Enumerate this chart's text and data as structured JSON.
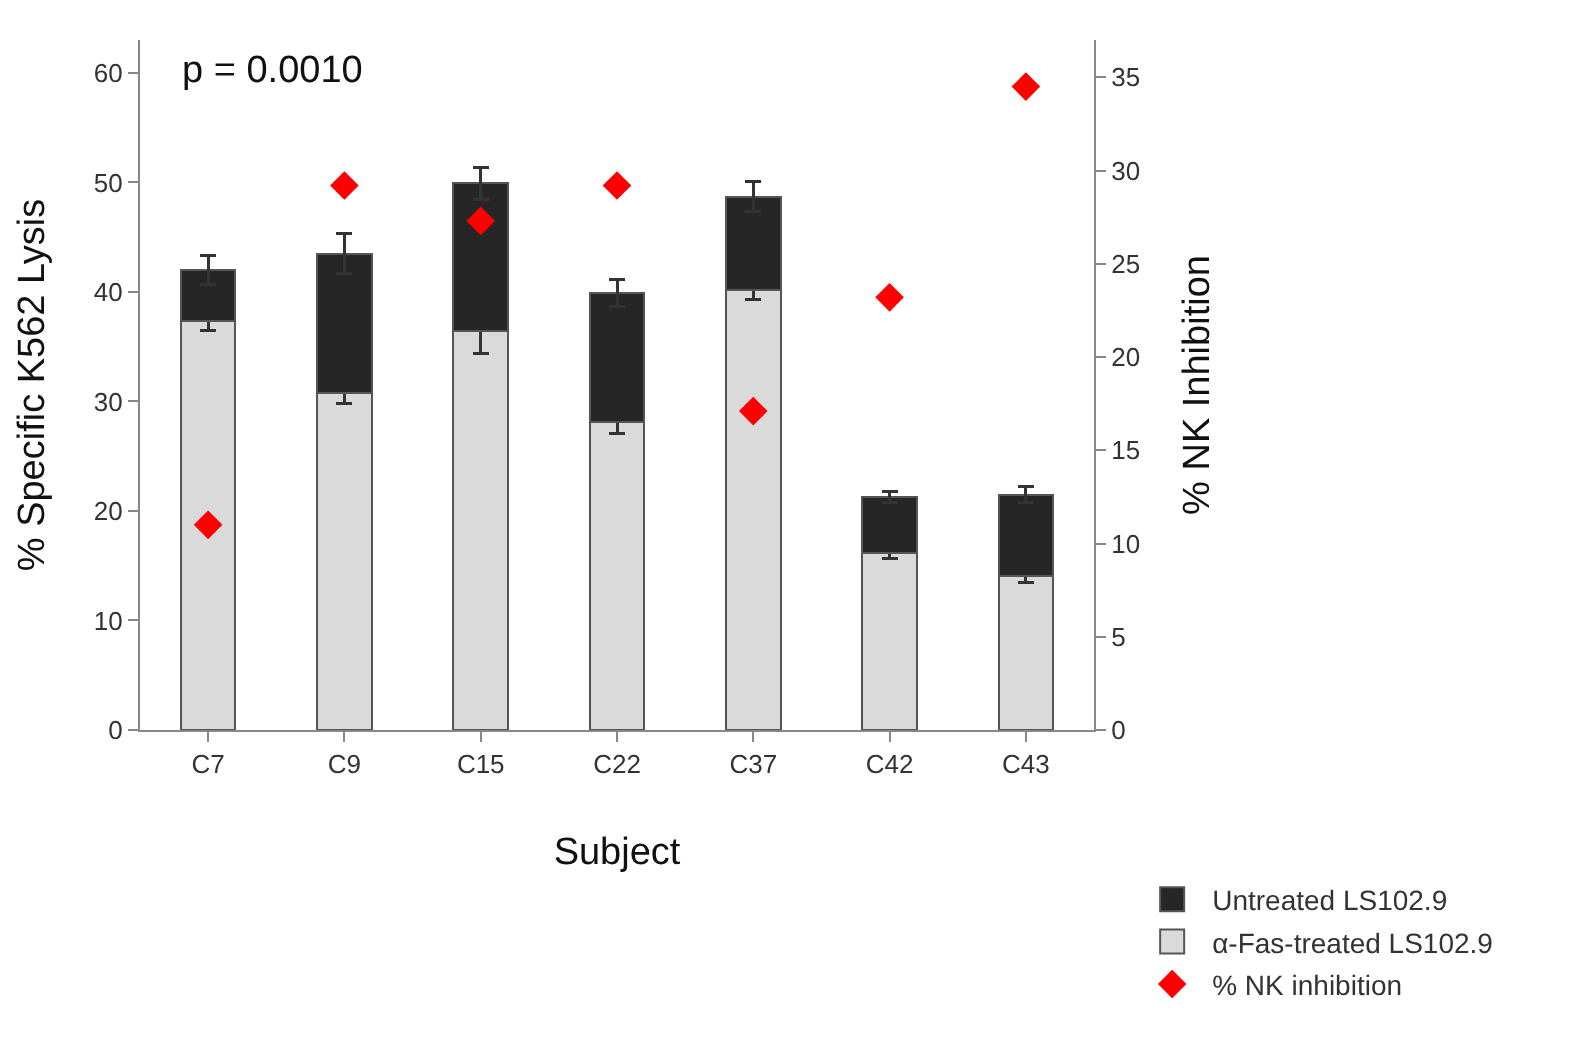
{
  "chart_data": {
    "type": "bar",
    "stacked": true,
    "xlabel": "Subject",
    "ylabel": "% Specific K562 Lysis",
    "y2label": "% NK Inhibition",
    "categories": [
      "C7",
      "C9",
      "C15",
      "C22",
      "C37",
      "C42",
      "C43"
    ],
    "series": [
      {
        "name": "α-Fas-treated LS102.9",
        "color": "#dadada",
        "values": [
          37.3,
          30.8,
          36.4,
          28.1,
          40.2,
          16.2,
          14.1
        ],
        "errors": [
          0.8,
          1,
          2,
          1,
          0.9,
          0.5,
          0.6
        ]
      },
      {
        "name": "Untreated LS102.9",
        "color": "#262626",
        "values": [
          4.7,
          12.7,
          13.5,
          11.8,
          8.5,
          5.1,
          7.4
        ],
        "errors": [
          1.3,
          1.8,
          1.5,
          1.2,
          1.4,
          0.5,
          0.7
        ]
      },
      {
        "name": "% NK inhibition",
        "type": "scatter",
        "axis": "y2",
        "color": "#ff0000",
        "marker": "diamond",
        "values": [
          11,
          29.2,
          27.3,
          29.2,
          17.1,
          23.2,
          34.5
        ]
      }
    ],
    "ylim": [
      0,
      63
    ],
    "yticks": [
      0,
      10,
      20,
      30,
      40,
      50,
      60
    ],
    "y2lim": [
      0,
      37
    ],
    "y2ticks": [
      0,
      5,
      10,
      15,
      20,
      25,
      30,
      35
    ],
    "annotations": [
      "p = 0.0010"
    ],
    "grid": false,
    "legend": "bottom right"
  }
}
